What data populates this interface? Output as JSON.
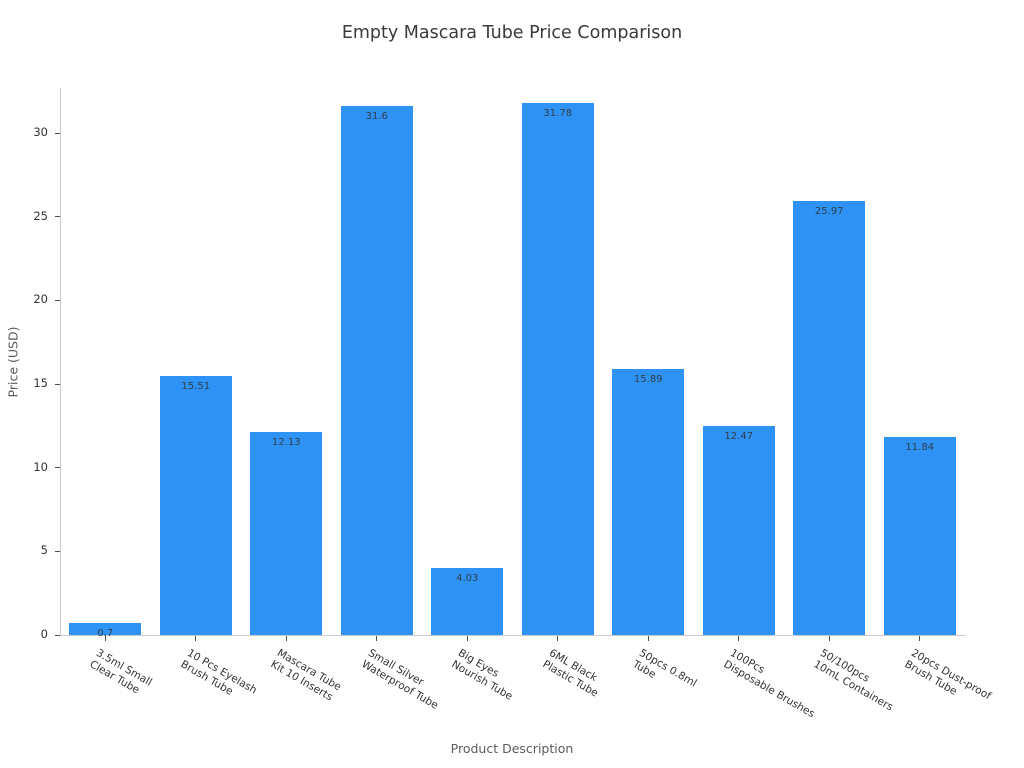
{
  "chart_data": {
    "type": "bar",
    "title": "Empty Mascara Tube Price Comparison",
    "xlabel": "Product Description",
    "ylabel": "Price (USD)",
    "categories": [
      "3.5ml Small\nClear Tube",
      "10 Pcs Eyelash\nBrush Tube",
      "Mascara Tube\nKit 10 Inserts",
      "Small Silver\nWaterproof Tube",
      "Big Eyes\nNourish Tube",
      "6ML Black\nPlastic Tube",
      "50pcs 0.8ml\nTube",
      "100Pcs\nDisposable Brushes",
      "50/100pcs\n10mL Containers",
      "20pcs Dust-proof\nBrush Tube"
    ],
    "values": [
      0.7,
      15.51,
      12.13,
      31.6,
      4.03,
      31.78,
      15.89,
      12.47,
      25.97,
      11.84
    ],
    "bar_labels": [
      "0.7",
      "15.51",
      "12.13",
      "31.6",
      "4.03",
      "31.78",
      "15.89",
      "12.47",
      "25.97",
      "11.84"
    ],
    "yticks": [
      0,
      5,
      10,
      15,
      20,
      25,
      30
    ],
    "ylim": [
      0,
      32.7
    ],
    "bar_color": "#2E93F5",
    "grid": false,
    "legend_position": "none"
  }
}
